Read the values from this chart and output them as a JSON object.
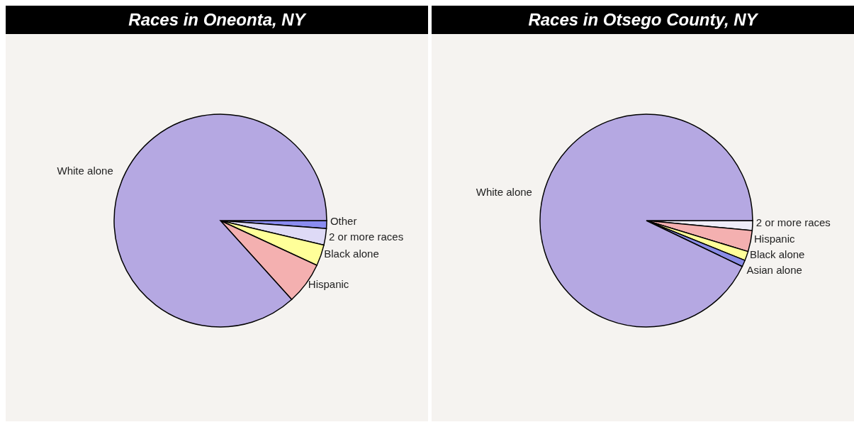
{
  "chart_data": [
    {
      "type": "pie",
      "title": "Races in Oneonta, NY",
      "categories": [
        "Other",
        "2 or more races",
        "Black alone",
        "Hispanic",
        "White alone"
      ],
      "values": [
        1.2,
        2.5,
        3.2,
        6.4,
        86.7
      ],
      "colors": [
        "#8a8cf0",
        "#dedaf6",
        "#ffff99",
        "#f4b0b0",
        "#b5a8e2"
      ]
    },
    {
      "type": "pie",
      "title": "Races in Otsego County, NY",
      "categories": [
        "2 or more races",
        "Hispanic",
        "Black alone",
        "Asian alone",
        "White alone"
      ],
      "values": [
        1.5,
        3.2,
        1.4,
        1.0,
        92.9
      ],
      "colors": [
        "#eeecf8",
        "#f4b0b0",
        "#ffff99",
        "#8a8ce6",
        "#b5a8e2"
      ]
    }
  ]
}
